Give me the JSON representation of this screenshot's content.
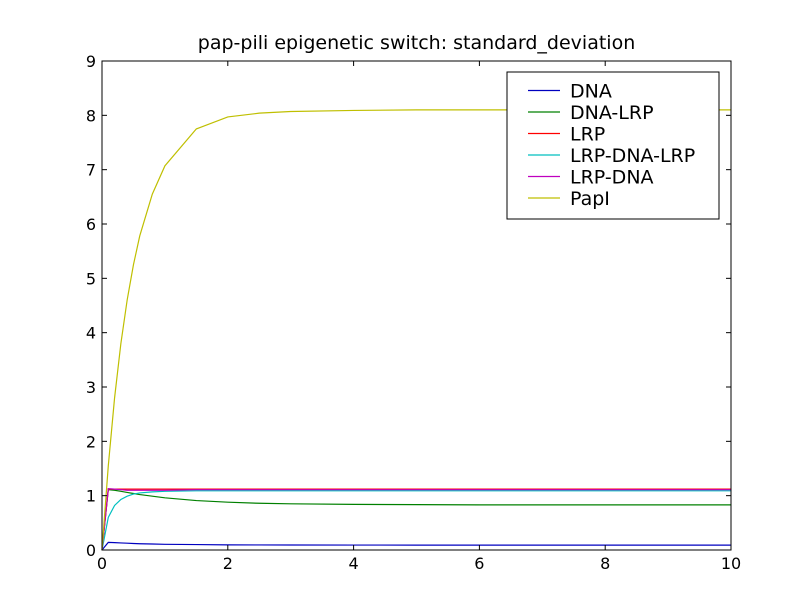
{
  "chart_data": {
    "type": "line",
    "title": "pap-pili epigenetic switch: standard_deviation",
    "xlabel": "",
    "ylabel": "",
    "xlim": [
      0,
      10
    ],
    "ylim": [
      0,
      9
    ],
    "x_ticks": [
      "0",
      "2",
      "4",
      "6",
      "8",
      "10"
    ],
    "y_ticks": [
      "0",
      "1",
      "2",
      "3",
      "4",
      "5",
      "6",
      "7",
      "8",
      "9"
    ],
    "grid": false,
    "legend_position": "top-right",
    "x": [
      0,
      0.1,
      0.2,
      0.3,
      0.4,
      0.5,
      0.6,
      0.8,
      1.0,
      1.5,
      2.0,
      2.5,
      3.0,
      4.0,
      5.0,
      6.0,
      7.0,
      8.0,
      9.0,
      10.0
    ],
    "series": [
      {
        "name": "DNA",
        "color": "#0000bf",
        "values": [
          0,
          0.14,
          0.135,
          0.13,
          0.125,
          0.12,
          0.115,
          0.11,
          0.105,
          0.1,
          0.095,
          0.093,
          0.092,
          0.091,
          0.09,
          0.09,
          0.09,
          0.09,
          0.09,
          0.09
        ]
      },
      {
        "name": "DNA-LRP",
        "color": "#008000",
        "values": [
          0,
          1.11,
          1.1,
          1.08,
          1.06,
          1.04,
          1.02,
          0.99,
          0.96,
          0.91,
          0.88,
          0.86,
          0.85,
          0.84,
          0.835,
          0.83,
          0.83,
          0.83,
          0.83,
          0.83
        ]
      },
      {
        "name": "LRP",
        "color": "#ff0000",
        "values": [
          0,
          1.12,
          1.12,
          1.12,
          1.12,
          1.12,
          1.12,
          1.12,
          1.12,
          1.12,
          1.12,
          1.12,
          1.12,
          1.12,
          1.12,
          1.12,
          1.12,
          1.12,
          1.12,
          1.12
        ]
      },
      {
        "name": "LRP-DNA-LRP",
        "color": "#00bfbf",
        "values": [
          0,
          0.6,
          0.82,
          0.93,
          0.99,
          1.03,
          1.05,
          1.07,
          1.08,
          1.09,
          1.09,
          1.09,
          1.09,
          1.09,
          1.09,
          1.09,
          1.09,
          1.09,
          1.09,
          1.09
        ]
      },
      {
        "name": "LRP-DNA",
        "color": "#bf00bf",
        "values": [
          0,
          1.13,
          1.12,
          1.11,
          1.1,
          1.1,
          1.1,
          1.1,
          1.1,
          1.11,
          1.11,
          1.11,
          1.11,
          1.11,
          1.11,
          1.11,
          1.11,
          1.11,
          1.11,
          1.11
        ]
      },
      {
        "name": "PapI",
        "color": "#bfbf00",
        "values": [
          0,
          1.55,
          2.8,
          3.8,
          4.6,
          5.25,
          5.78,
          6.55,
          7.07,
          7.75,
          7.97,
          8.04,
          8.07,
          8.09,
          8.1,
          8.1,
          8.1,
          8.1,
          8.1,
          8.1
        ]
      }
    ]
  }
}
